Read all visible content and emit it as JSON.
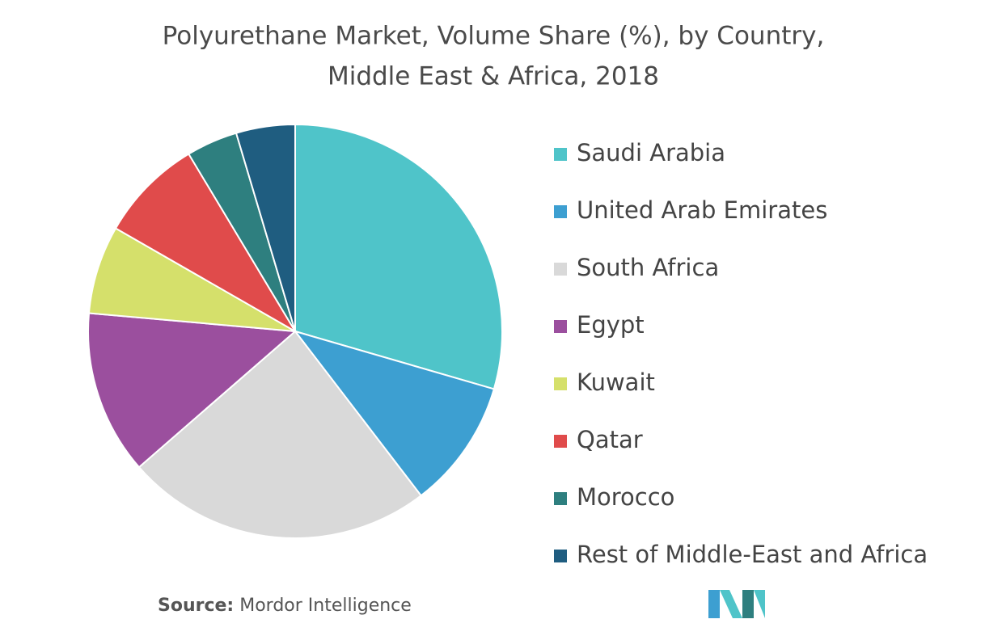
{
  "chart_data": {
    "type": "pie",
    "title": [
      "Polyurethane Market, Volume Share (%), by Country,",
      "Middle East & Africa,  2018"
    ],
    "categories": [
      "Saudi Arabia",
      "United Arab Emirates",
      "South Africa",
      "Egypt",
      "Kuwait",
      "Qatar",
      "Morocco",
      "Rest of Middle-East and Africa"
    ],
    "values": [
      29.5,
      10.1,
      24.0,
      12.8,
      6.9,
      8.1,
      4.0,
      4.6
    ],
    "colors": [
      "#4fc4c9",
      "#3d9fd1",
      "#d9d9d9",
      "#9b4f9e",
      "#d5e06b",
      "#e04b4b",
      "#2e7f7f",
      "#1f5d80"
    ],
    "legend": "right",
    "source_label": "Source:",
    "source": "Mordor Intelligence"
  }
}
